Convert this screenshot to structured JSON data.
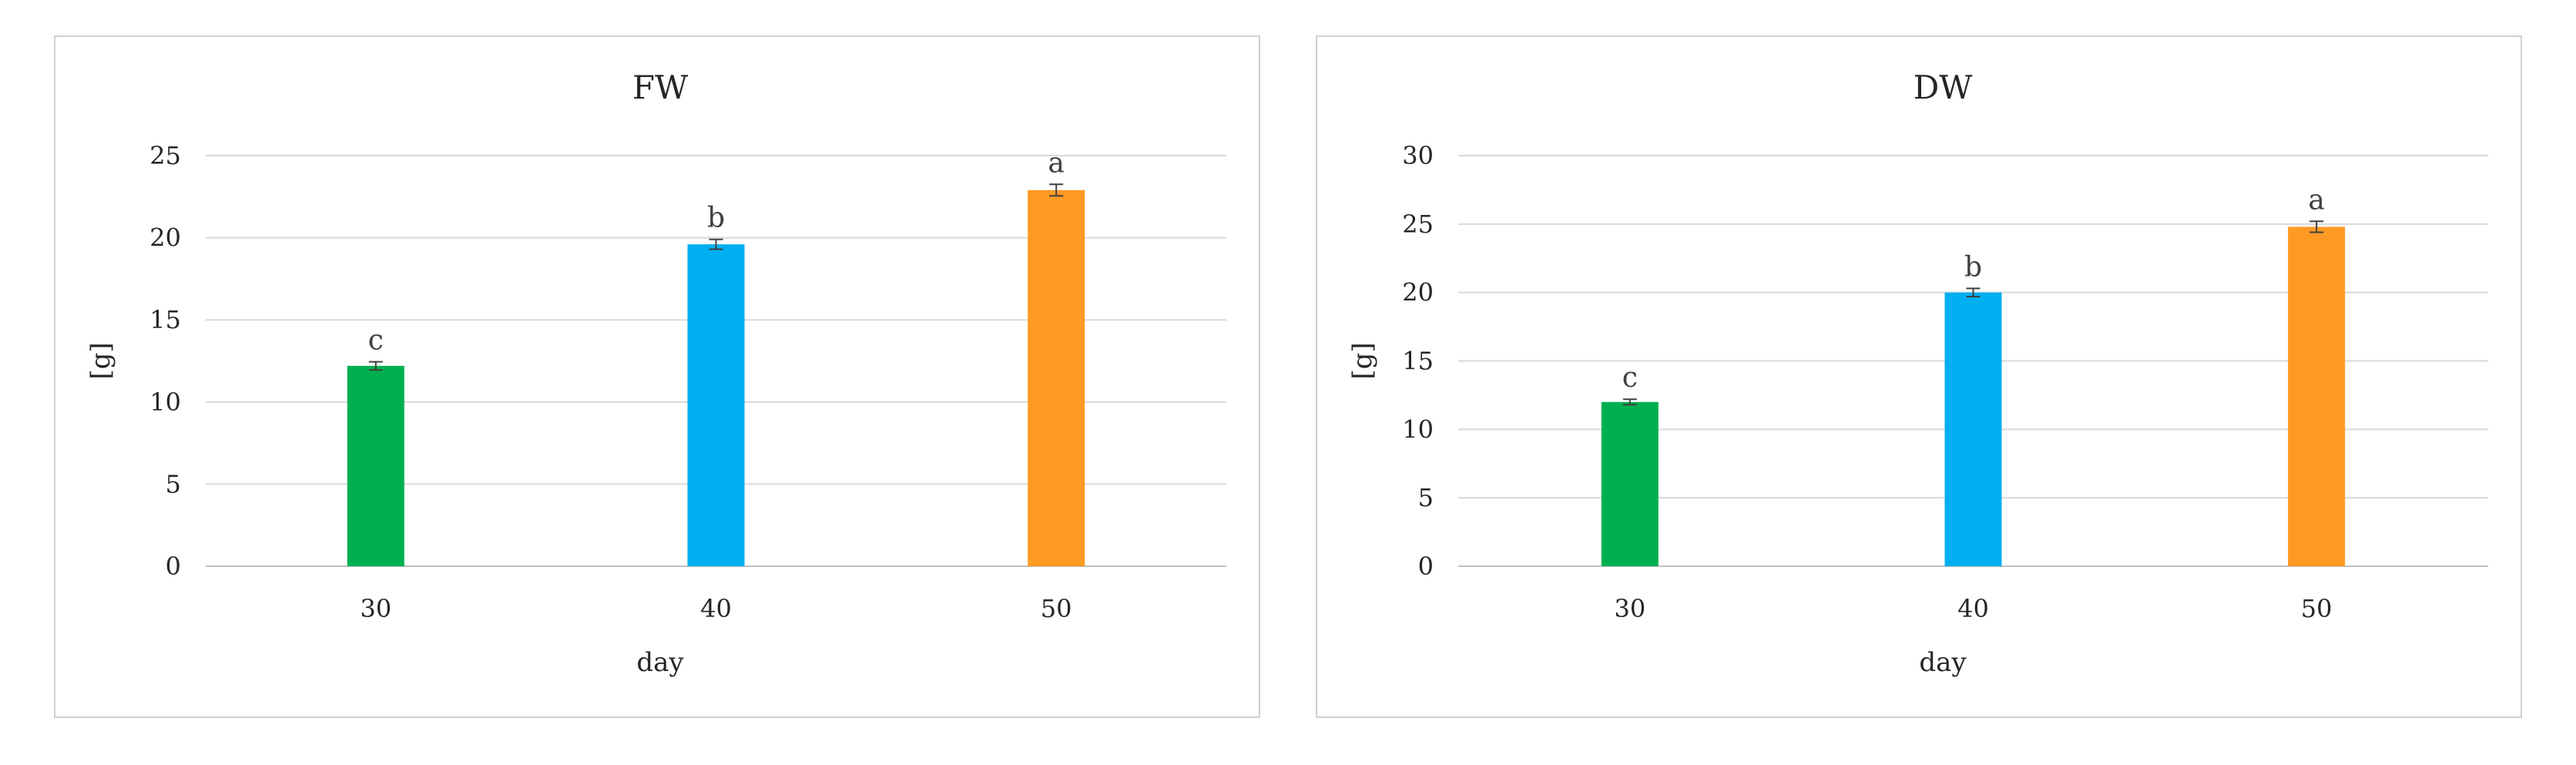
{
  "chart_data": [
    {
      "type": "bar",
      "title": "FW",
      "xlabel": "day",
      "ylabel": "[g]",
      "categories": [
        "30",
        "40",
        "50"
      ],
      "values": [
        12.2,
        19.6,
        22.9
      ],
      "errors": [
        0.25,
        0.3,
        0.35
      ],
      "letters": [
        "c",
        "b",
        "a"
      ],
      "colors": [
        "#00b050",
        "#00b0f0",
        "#ff9a24"
      ],
      "ylim": [
        0,
        25
      ],
      "yticks": [
        0,
        5,
        10,
        15,
        20,
        25
      ],
      "grid": true,
      "legend": "none"
    },
    {
      "type": "bar",
      "title": "DW",
      "xlabel": "day",
      "ylabel": "[g]",
      "categories": [
        "30",
        "40",
        "50"
      ],
      "values": [
        12.0,
        20.0,
        24.8
      ],
      "errors": [
        0.2,
        0.3,
        0.4
      ],
      "letters": [
        "c",
        "b",
        "a"
      ],
      "colors": [
        "#00b050",
        "#00b0f0",
        "#ff9a24"
      ],
      "ylim": [
        0,
        30
      ],
      "yticks": [
        0,
        5,
        10,
        15,
        20,
        25,
        30
      ],
      "grid": true,
      "legend": "none"
    }
  ]
}
